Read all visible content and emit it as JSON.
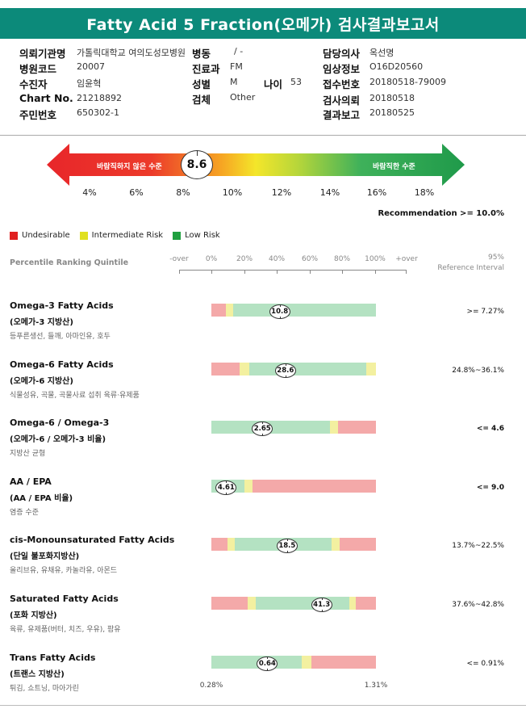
{
  "title": "Fatty Acid 5 Fraction(오메가) 검사결과보고서",
  "info": {
    "institution_label": "의뢰기관명",
    "institution_value": "가톨릭대학교 여의도성모병원",
    "ward_label": "병동",
    "ward_value": "/ -",
    "doctor_label": "담당의사",
    "doctor_value": "옥선명",
    "hospital_code_label": "병원코드",
    "hospital_code_value": "20007",
    "dept_label": "진료과",
    "dept_value": "FM",
    "clinical_label": "임상정보",
    "clinical_value": "O16D20560",
    "examinee_label": "수진자",
    "examinee_value": "임윤혁",
    "sex_label": "성별",
    "sex_value": "M",
    "age_label": "나이",
    "age_value": "53",
    "receipt_label": "접수번호",
    "receipt_value": "20180518-79009",
    "chart_label": "Chart No.",
    "chart_value": "21218892",
    "specimen_label": "검체",
    "specimen_value": "Other",
    "request_label": "검사의뢰",
    "request_value": "20180518",
    "id_label": "주민번호",
    "id_value": "650302-1",
    "report_label": "결과보고",
    "report_value": "20180525"
  },
  "summary": {
    "left_text": "바람직하지 않은 수준",
    "right_text": "바람직한 수준",
    "value": "8.6",
    "value_num": 8.6,
    "scale": [
      "4%",
      "6%",
      "8%",
      "10%",
      "12%",
      "14%",
      "16%",
      "18%"
    ],
    "recommendation": "Recommendation  >= 10.0%"
  },
  "legend": [
    {
      "label": "Undesirable",
      "color": "#e02020"
    },
    {
      "label": "Intermediate Risk",
      "color": "#e0e020"
    },
    {
      "label": "Low Risk",
      "color": "#20a040"
    }
  ],
  "header": {
    "left": "Percentile Ranking Quintile",
    "ticks": [
      "-over",
      "0%",
      "20%",
      "40%",
      "60%",
      "80%",
      "100%",
      "+over"
    ],
    "right_line1": "95%",
    "right_line2": "Reference Interval"
  },
  "rows": [
    {
      "name": "Omega-3 Fatty Acids",
      "kname": "(오메가-3 지방산)",
      "desc": "등푸른생선, 들깨, 아마인유, 호두",
      "value": "10.8",
      "marker_pct": 41.5,
      "ref": ">= 7.27%",
      "ref_bold": false,
      "segments": [
        {
          "pct": 9,
          "color": "#f4a9a9"
        },
        {
          "pct": 4,
          "color": "#f3f0a0"
        },
        {
          "pct": 87,
          "color": "#b4e2c2"
        }
      ]
    },
    {
      "name": "Omega-6 Fatty Acids",
      "kname": "(오메가-6 지방산)",
      "desc": "식물성유, 곡물, 곡물사료 섭취 육류·유제품",
      "value": "28.6",
      "marker_pct": 45,
      "ref": "24.8%~36.1%",
      "ref_bold": false,
      "segments": [
        {
          "pct": 17,
          "color": "#f4a9a9"
        },
        {
          "pct": 6,
          "color": "#f3f0a0"
        },
        {
          "pct": 71,
          "color": "#b4e2c2"
        },
        {
          "pct": 6,
          "color": "#f3f0a0"
        }
      ]
    },
    {
      "name": "Omega-6 / Omega-3",
      "kname": "(오메가-6 / 오메가-3 비율)",
      "desc": "지방산 균형",
      "value": "2.65",
      "marker_pct": 31,
      "ref": "<= 4.6",
      "ref_bold": true,
      "segments": [
        {
          "pct": 72,
          "color": "#b4e2c2"
        },
        {
          "pct": 5,
          "color": "#f3f0a0"
        },
        {
          "pct": 23,
          "color": "#f4a9a9"
        }
      ]
    },
    {
      "name": "AA / EPA",
      "kname": "(AA / EPA 비율)",
      "desc": "염증 수준",
      "value": "4.61",
      "marker_pct": 9,
      "ref": "<= 9.0",
      "ref_bold": true,
      "segments": [
        {
          "pct": 20,
          "color": "#b4e2c2"
        },
        {
          "pct": 5,
          "color": "#f3f0a0"
        },
        {
          "pct": 75,
          "color": "#f4a9a9"
        }
      ]
    },
    {
      "name": "cis-Monounsaturated Fatty Acids",
      "kname": "(단일 불포화지방산)",
      "desc": "올리브유, 유채유, 카놀라유, 아몬드",
      "value": "18.5",
      "marker_pct": 46,
      "ref": "13.7%~22.5%",
      "ref_bold": false,
      "segments": [
        {
          "pct": 10,
          "color": "#f4a9a9"
        },
        {
          "pct": 4,
          "color": "#f3f0a0"
        },
        {
          "pct": 59,
          "color": "#b4e2c2"
        },
        {
          "pct": 5,
          "color": "#f3f0a0"
        },
        {
          "pct": 22,
          "color": "#f4a9a9"
        }
      ]
    },
    {
      "name": "Saturated Fatty Acids",
      "kname": "(포화 지방산)",
      "desc": "육류, 유제품(버터, 치즈, 우유), 팜유",
      "value": "41.3",
      "marker_pct": 67,
      "ref": "37.6%~42.8%",
      "ref_bold": false,
      "segments": [
        {
          "pct": 22,
          "color": "#f4a9a9"
        },
        {
          "pct": 5,
          "color": "#f3f0a0"
        },
        {
          "pct": 57,
          "color": "#b4e2c2"
        },
        {
          "pct": 4,
          "color": "#f3f0a0"
        },
        {
          "pct": 12,
          "color": "#f4a9a9"
        }
      ]
    },
    {
      "name": "Trans Fatty Acids",
      "kname": "(트랜스 지방산)",
      "desc": "튀김, 쇼트닝, 마아가린",
      "value": "0.64",
      "marker_pct": 34,
      "ref": "<= 0.91%",
      "ref_bold": false,
      "segments": [
        {
          "pct": 55,
          "color": "#b4e2c2"
        },
        {
          "pct": 6,
          "color": "#f3f0a0"
        },
        {
          "pct": 39,
          "color": "#f4a9a9"
        }
      ]
    }
  ],
  "footer": {
    "left": "0.28%",
    "right": "1.31%"
  }
}
